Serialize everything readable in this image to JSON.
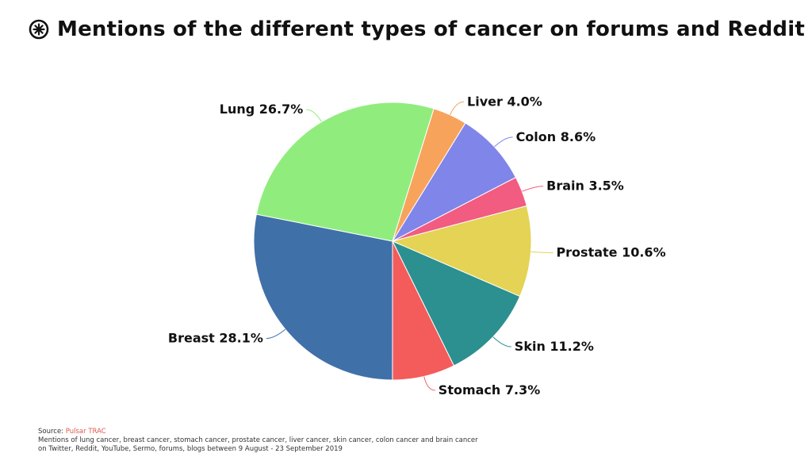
{
  "title": "Mentions of the different types of cancer on forums and Reddit",
  "icon": "pulsar-logo-icon",
  "chart_data": {
    "type": "pie",
    "title": "Mentions of the different types of cancer on forums and Reddit",
    "start_angle_deg": 17.3,
    "slices": [
      {
        "label": "Liver",
        "value": 4.0,
        "display": "Liver 4.0%",
        "color": "#f7a35c"
      },
      {
        "label": "Colon",
        "value": 8.6,
        "display": "Colon 8.6%",
        "color": "#8085e9"
      },
      {
        "label": "Brain",
        "value": 3.5,
        "display": "Brain 3.5%",
        "color": "#f15c80"
      },
      {
        "label": "Prostate",
        "value": 10.6,
        "display": "Prostate 10.6%",
        "color": "#e4d354"
      },
      {
        "label": "Skin",
        "value": 11.2,
        "display": "Skin 11.2%",
        "color": "#2b908f"
      },
      {
        "label": "Stomach",
        "value": 7.3,
        "display": "Stomach 7.3%",
        "color": "#f45b5b"
      },
      {
        "label": "Breast",
        "value": 28.1,
        "display": "Breast 28.1%",
        "color": "#4070a8"
      },
      {
        "label": "Lung",
        "value": 26.7,
        "display": "Lung 26.7%",
        "color": "#90ed7d"
      }
    ]
  },
  "footer": {
    "source_prefix": "Source: ",
    "source_link": "Pulsar TRAC",
    "line1": "Mentions of lung cancer, breast cancer, stomach cancer, prostate cancer, liver cancer, skin cancer, colon cancer and brain cancer",
    "line2": "on Twitter, Reddit, YouTube, Sermo, forums, blogs between 9 August - 23 September 2019"
  }
}
